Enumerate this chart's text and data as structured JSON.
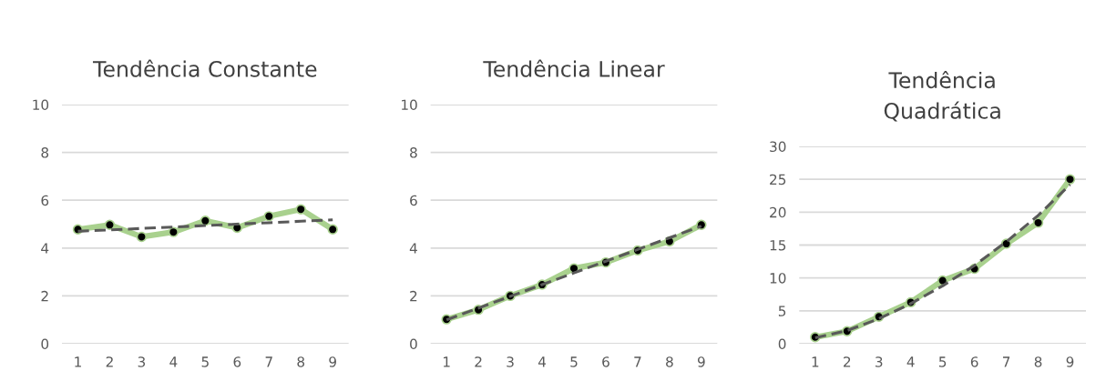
{
  "chart_data": [
    {
      "type": "line",
      "title": "Tendência Constante",
      "categories": [
        "1",
        "2",
        "3",
        "4",
        "5",
        "6",
        "7",
        "8",
        "9"
      ],
      "ylim": [
        0,
        10
      ],
      "yticks": [
        0,
        2,
        4,
        6,
        8,
        10
      ],
      "grid": "y",
      "series": [
        {
          "color": "#a9d18e",
          "marker": "circle",
          "line_style": "solid",
          "values": [
            4.78,
            4.97,
            4.47,
            4.67,
            5.14,
            4.85,
            5.33,
            5.62,
            4.78
          ]
        },
        {
          "color": "#595959",
          "marker": "none",
          "line_style": "dashed",
          "values": [
            4.7,
            4.76,
            4.82,
            4.88,
            4.94,
            5.0,
            5.06,
            5.12,
            5.18
          ]
        }
      ]
    },
    {
      "type": "line",
      "title": "Tendência Linear",
      "categories": [
        "1",
        "2",
        "3",
        "4",
        "5",
        "6",
        "7",
        "8",
        "9"
      ],
      "ylim": [
        0,
        10
      ],
      "yticks": [
        0,
        2,
        4,
        6,
        8,
        10
      ],
      "grid": "y",
      "series": [
        {
          "color": "#a9d18e",
          "marker": "circle",
          "line_style": "solid",
          "values": [
            1.02,
            1.42,
            2.0,
            2.47,
            3.15,
            3.4,
            3.9,
            4.28,
            4.97
          ]
        },
        {
          "color": "#595959",
          "marker": "none",
          "line_style": "dashed",
          "values": [
            1.0,
            1.49,
            1.98,
            2.47,
            2.96,
            3.45,
            3.94,
            4.43,
            4.92
          ]
        }
      ]
    },
    {
      "type": "line",
      "title": "Tendência\nQuadrática",
      "categories": [
        "1",
        "2",
        "3",
        "4",
        "5",
        "6",
        "7",
        "8",
        "9"
      ],
      "ylim": [
        0,
        30
      ],
      "yticks": [
        0,
        5,
        10,
        15,
        20,
        25,
        30
      ],
      "grid": "y",
      "series": [
        {
          "color": "#a9d18e",
          "marker": "circle",
          "line_style": "solid",
          "values": [
            1.0,
            1.9,
            4.1,
            6.3,
            9.6,
            11.4,
            15.2,
            18.4,
            25.0
          ]
        },
        {
          "color": "#595959",
          "marker": "none",
          "line_style": "dashed",
          "values": [
            0.9,
            2.0,
            3.8,
            6.1,
            8.8,
            11.9,
            15.5,
            19.5,
            24.2
          ]
        }
      ]
    }
  ]
}
